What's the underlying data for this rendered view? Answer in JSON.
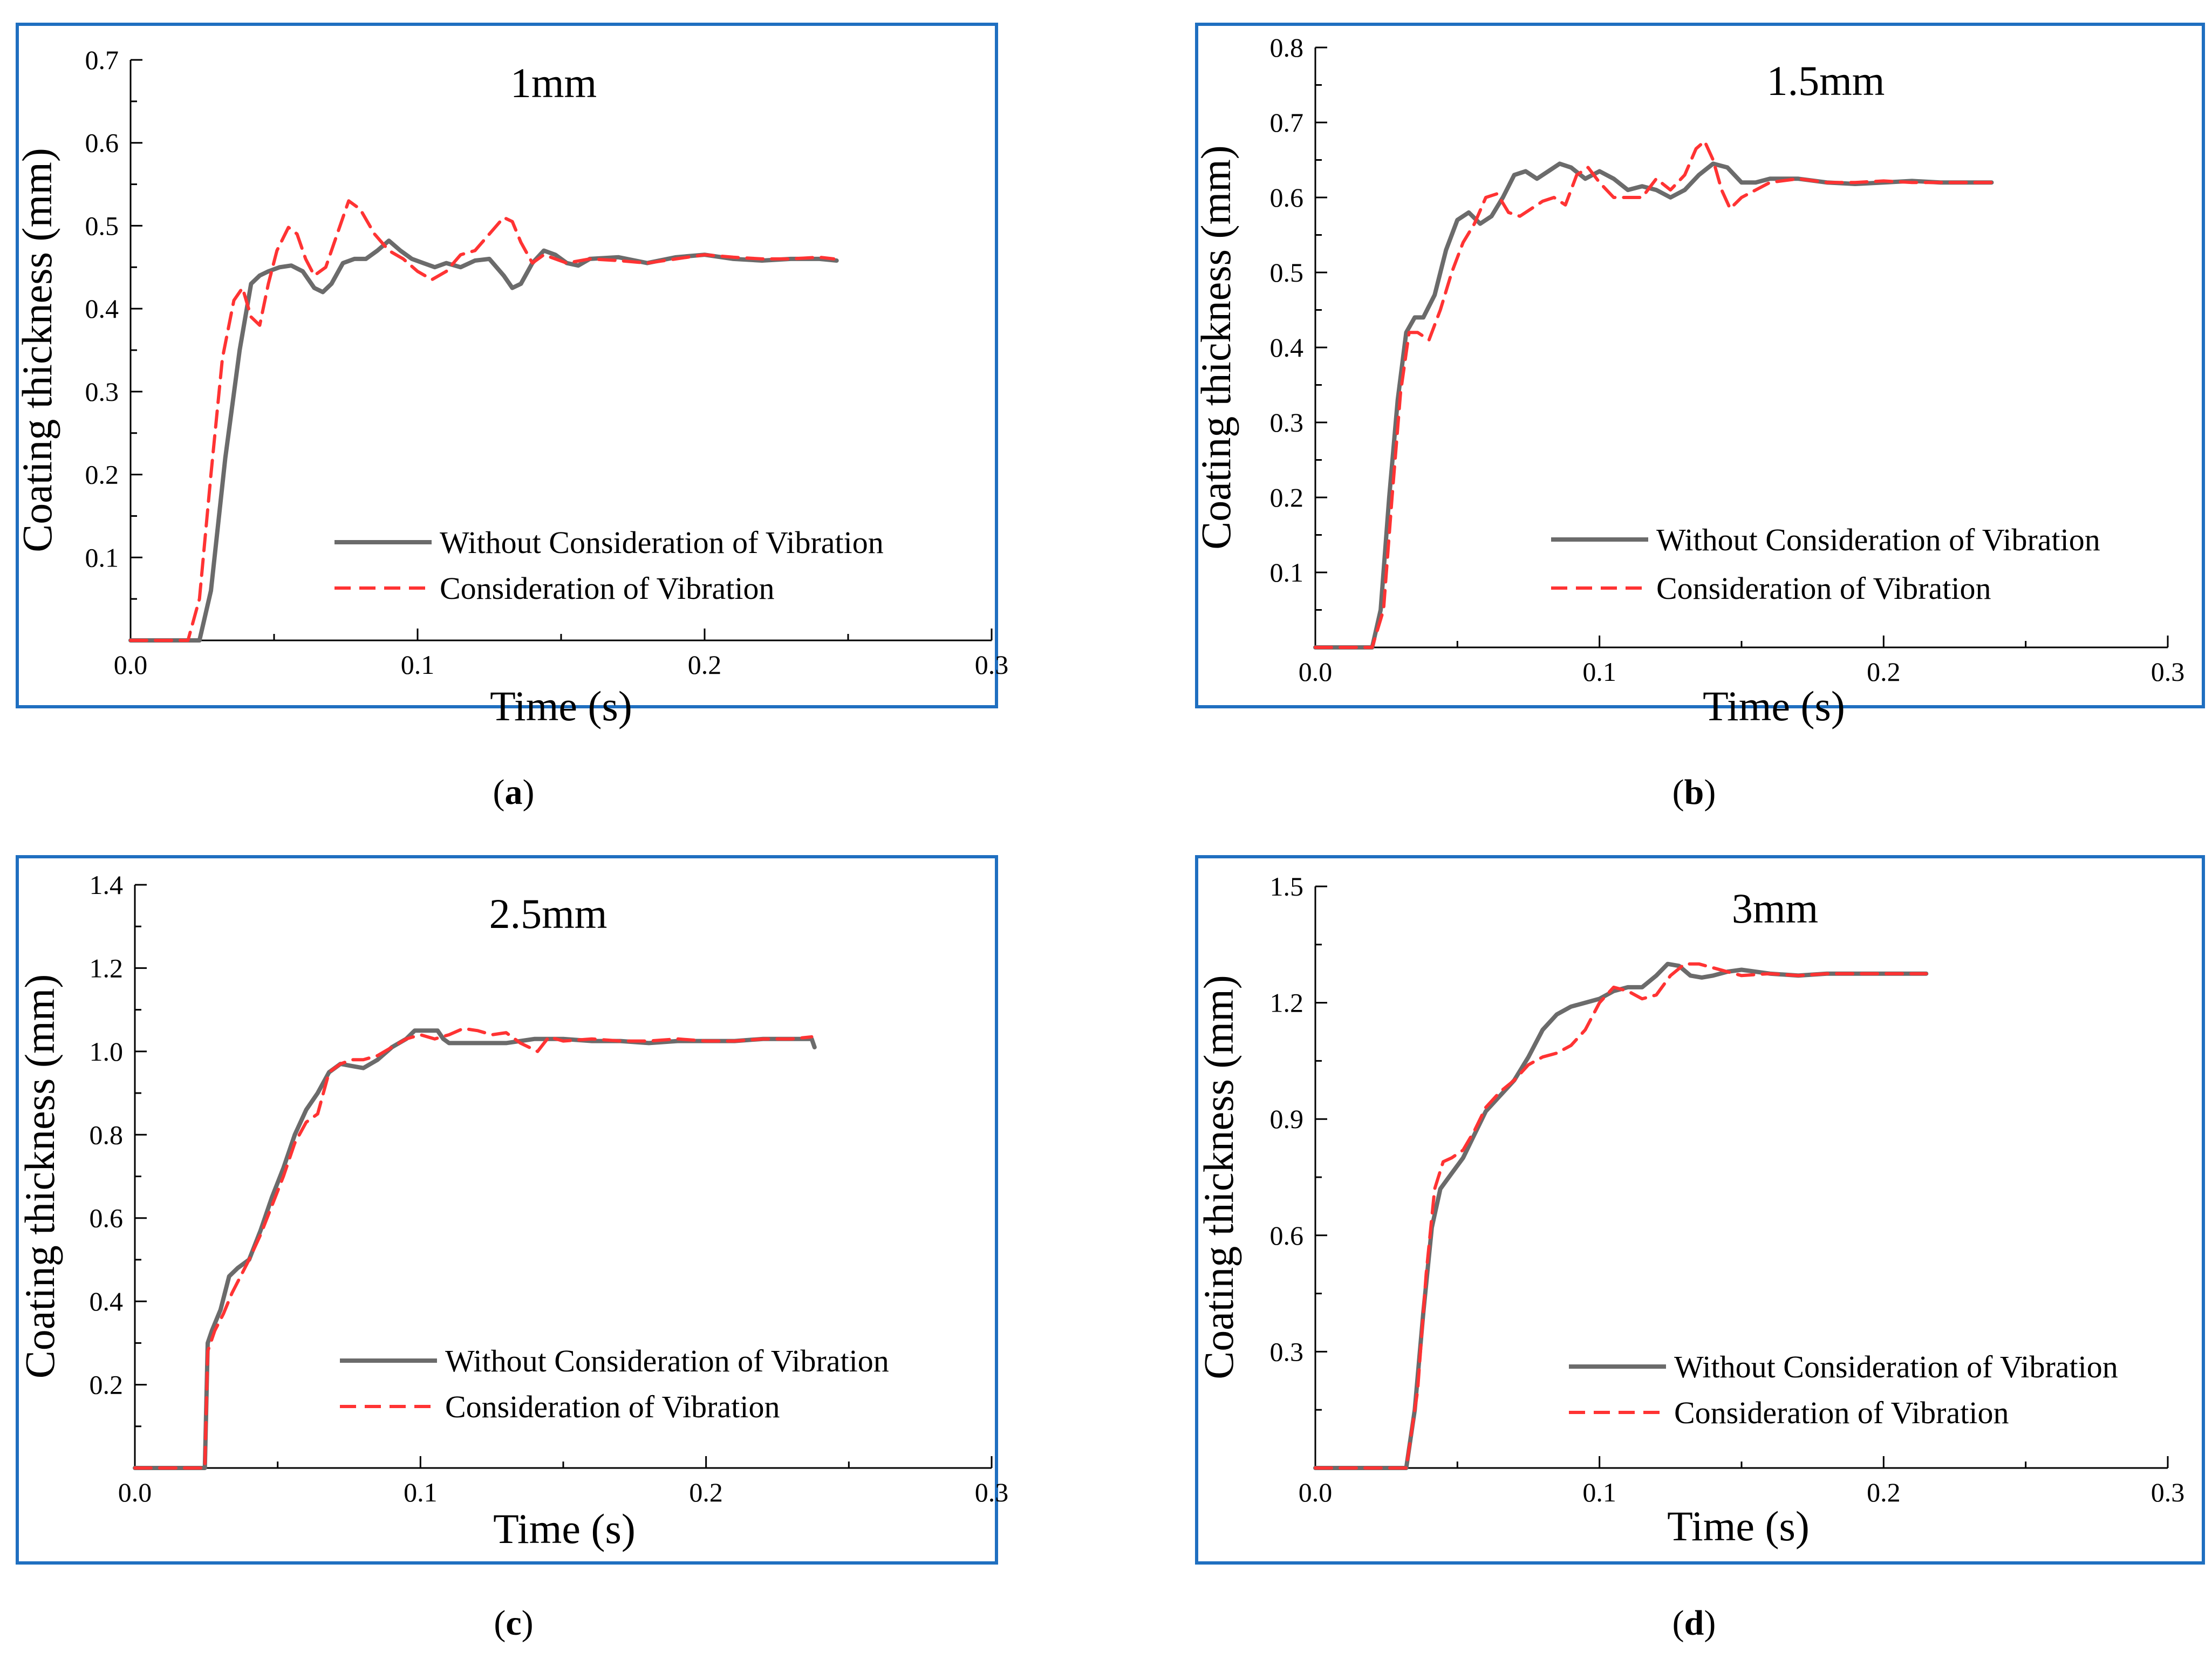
{
  "colors": {
    "frame": "#1f6fc0",
    "axis": "#000000",
    "series_without": "#6b6b6b",
    "series_with": "#ff3333"
  },
  "chart_data": [
    {
      "type": "line",
      "panel": "a",
      "panel_label": "a",
      "title": "1mm",
      "xlabel": "Time (s)",
      "ylabel": "Coating thickness (mm)",
      "xlim": [
        0,
        0.3
      ],
      "ylim": [
        0,
        0.7
      ],
      "xticks": [
        0.0,
        0.1,
        0.2,
        0.3
      ],
      "xtick_labels": [
        "0.0",
        "0.1",
        "0.2",
        "0.3"
      ],
      "yticks": [
        0.1,
        0.2,
        0.3,
        0.4,
        0.5,
        0.6,
        0.7
      ],
      "ytick_labels": [
        "0.1",
        "0.2",
        "0.3",
        "0.4",
        "0.5",
        "0.6",
        "0.7"
      ],
      "legend": {
        "placement": "bottom-right"
      },
      "series": [
        {
          "name": "Without Consideration of Vibration",
          "style": "solid",
          "x": [
            0,
            0.024,
            0.028,
            0.033,
            0.038,
            0.042,
            0.045,
            0.048,
            0.052,
            0.056,
            0.06,
            0.064,
            0.067,
            0.07,
            0.074,
            0.078,
            0.082,
            0.086,
            0.09,
            0.094,
            0.098,
            0.102,
            0.106,
            0.11,
            0.115,
            0.12,
            0.125,
            0.13,
            0.133,
            0.136,
            0.14,
            0.144,
            0.148,
            0.152,
            0.156,
            0.16,
            0.17,
            0.18,
            0.19,
            0.2,
            0.21,
            0.22,
            0.23,
            0.24,
            0.246
          ],
          "y": [
            0,
            0,
            0.06,
            0.22,
            0.35,
            0.43,
            0.44,
            0.445,
            0.45,
            0.452,
            0.445,
            0.425,
            0.42,
            0.43,
            0.455,
            0.46,
            0.46,
            0.47,
            0.482,
            0.47,
            0.46,
            0.455,
            0.45,
            0.455,
            0.45,
            0.458,
            0.46,
            0.44,
            0.425,
            0.43,
            0.455,
            0.47,
            0.465,
            0.455,
            0.452,
            0.46,
            0.462,
            0.455,
            0.462,
            0.465,
            0.46,
            0.458,
            0.46,
            0.46,
            0.458
          ]
        },
        {
          "name": "Consideration of Vibration",
          "style": "dashed",
          "x": [
            0,
            0.02,
            0.024,
            0.028,
            0.032,
            0.036,
            0.039,
            0.042,
            0.045,
            0.048,
            0.051,
            0.055,
            0.058,
            0.061,
            0.064,
            0.068,
            0.072,
            0.076,
            0.08,
            0.085,
            0.09,
            0.095,
            0.1,
            0.105,
            0.11,
            0.115,
            0.12,
            0.125,
            0.13,
            0.133,
            0.136,
            0.14,
            0.144,
            0.148,
            0.152,
            0.16,
            0.17,
            0.18,
            0.19,
            0.2,
            0.21,
            0.22,
            0.23,
            0.24,
            0.245
          ],
          "y": [
            0,
            0,
            0.05,
            0.2,
            0.34,
            0.41,
            0.425,
            0.39,
            0.38,
            0.43,
            0.47,
            0.498,
            0.49,
            0.46,
            0.44,
            0.45,
            0.49,
            0.53,
            0.52,
            0.49,
            0.47,
            0.46,
            0.445,
            0.435,
            0.445,
            0.465,
            0.47,
            0.49,
            0.51,
            0.505,
            0.48,
            0.455,
            0.465,
            0.46,
            0.455,
            0.46,
            0.458,
            0.455,
            0.46,
            0.465,
            0.462,
            0.46,
            0.46,
            0.462,
            0.46
          ]
        }
      ]
    },
    {
      "type": "line",
      "panel": "b",
      "panel_label": "b",
      "title": "1.5mm",
      "xlabel": "Time (s)",
      "ylabel": "Coating thickness (mm)",
      "xlim": [
        0,
        0.3
      ],
      "ylim": [
        0,
        0.8
      ],
      "xticks": [
        0.0,
        0.1,
        0.2,
        0.3
      ],
      "xtick_labels": [
        "0.0",
        "0.1",
        "0.2",
        "0.3"
      ],
      "yticks": [
        0.1,
        0.2,
        0.3,
        0.4,
        0.5,
        0.6,
        0.7,
        0.8
      ],
      "ytick_labels": [
        "0.1",
        "0.2",
        "0.3",
        "0.4",
        "0.5",
        "0.6",
        "0.7",
        "0.8"
      ],
      "legend": {
        "placement": "bottom-right"
      },
      "series": [
        {
          "name": "Without Consideration of Vibration",
          "style": "solid",
          "x": [
            0,
            0.02,
            0.023,
            0.026,
            0.029,
            0.032,
            0.035,
            0.038,
            0.042,
            0.046,
            0.05,
            0.054,
            0.058,
            0.062,
            0.066,
            0.07,
            0.074,
            0.078,
            0.082,
            0.086,
            0.09,
            0.095,
            0.1,
            0.105,
            0.11,
            0.115,
            0.12,
            0.125,
            0.13,
            0.135,
            0.14,
            0.145,
            0.15,
            0.155,
            0.16,
            0.17,
            0.18,
            0.19,
            0.2,
            0.21,
            0.22,
            0.23,
            0.238
          ],
          "y": [
            0,
            0,
            0.05,
            0.2,
            0.33,
            0.42,
            0.44,
            0.44,
            0.47,
            0.53,
            0.57,
            0.58,
            0.565,
            0.575,
            0.6,
            0.63,
            0.635,
            0.625,
            0.635,
            0.645,
            0.64,
            0.625,
            0.635,
            0.625,
            0.61,
            0.615,
            0.61,
            0.6,
            0.61,
            0.63,
            0.645,
            0.64,
            0.62,
            0.62,
            0.625,
            0.625,
            0.62,
            0.618,
            0.62,
            0.622,
            0.62,
            0.62,
            0.62
          ]
        },
        {
          "name": "Consideration of Vibration",
          "style": "dashed",
          "x": [
            0,
            0.02,
            0.024,
            0.027,
            0.03,
            0.033,
            0.036,
            0.04,
            0.044,
            0.048,
            0.052,
            0.056,
            0.06,
            0.064,
            0.068,
            0.072,
            0.076,
            0.08,
            0.084,
            0.088,
            0.092,
            0.096,
            0.1,
            0.105,
            0.11,
            0.115,
            0.12,
            0.125,
            0.13,
            0.134,
            0.137,
            0.14,
            0.143,
            0.146,
            0.15,
            0.155,
            0.16,
            0.17,
            0.18,
            0.19,
            0.2,
            0.21,
            0.22,
            0.23,
            0.238
          ],
          "y": [
            0,
            0,
            0.05,
            0.2,
            0.34,
            0.42,
            0.42,
            0.41,
            0.45,
            0.5,
            0.54,
            0.565,
            0.6,
            0.605,
            0.58,
            0.575,
            0.585,
            0.595,
            0.6,
            0.59,
            0.63,
            0.64,
            0.62,
            0.6,
            0.6,
            0.6,
            0.625,
            0.61,
            0.63,
            0.665,
            0.675,
            0.65,
            0.61,
            0.585,
            0.6,
            0.61,
            0.62,
            0.625,
            0.62,
            0.62,
            0.622,
            0.62,
            0.62,
            0.62,
            0.62
          ]
        }
      ]
    },
    {
      "type": "line",
      "panel": "c",
      "panel_label": "c",
      "title": "2.5mm",
      "xlabel": "Time (s)",
      "ylabel": "Coating thickness (mm)",
      "xlim": [
        0,
        0.3
      ],
      "ylim": [
        0,
        1.4
      ],
      "xticks": [
        0.0,
        0.1,
        0.2,
        0.3
      ],
      "xtick_labels": [
        "0.0",
        "0.1",
        "0.2",
        "0.3"
      ],
      "yticks": [
        0.2,
        0.4,
        0.6,
        0.8,
        1.0,
        1.2,
        1.4
      ],
      "ytick_labels": [
        "0.2",
        "0.4",
        "0.6",
        "0.8",
        "1.0",
        "1.2",
        "1.4"
      ],
      "legend": {
        "placement": "bottom-right"
      },
      "series": [
        {
          "name": "Without Consideration of Vibration",
          "style": "solid",
          "x": [
            0,
            0.0245,
            0.0255,
            0.027,
            0.03,
            0.033,
            0.036,
            0.04,
            0.044,
            0.048,
            0.052,
            0.056,
            0.06,
            0.064,
            0.068,
            0.072,
            0.076,
            0.08,
            0.085,
            0.09,
            0.095,
            0.098,
            0.102,
            0.106,
            0.108,
            0.11,
            0.115,
            0.12,
            0.13,
            0.14,
            0.15,
            0.16,
            0.17,
            0.18,
            0.19,
            0.2,
            0.21,
            0.22,
            0.23,
            0.237,
            0.238
          ],
          "y": [
            0,
            0,
            0.3,
            0.33,
            0.38,
            0.46,
            0.48,
            0.5,
            0.57,
            0.65,
            0.72,
            0.8,
            0.86,
            0.9,
            0.95,
            0.97,
            0.965,
            0.96,
            0.98,
            1.01,
            1.03,
            1.05,
            1.05,
            1.05,
            1.03,
            1.02,
            1.02,
            1.02,
            1.02,
            1.03,
            1.03,
            1.025,
            1.025,
            1.02,
            1.025,
            1.025,
            1.025,
            1.03,
            1.03,
            1.03,
            1.01
          ]
        },
        {
          "name": "Consideration of Vibration",
          "style": "dashed",
          "x": [
            0,
            0.0245,
            0.0255,
            0.028,
            0.031,
            0.034,
            0.037,
            0.04,
            0.044,
            0.048,
            0.052,
            0.056,
            0.06,
            0.064,
            0.068,
            0.072,
            0.076,
            0.08,
            0.085,
            0.09,
            0.095,
            0.1,
            0.105,
            0.11,
            0.115,
            0.12,
            0.125,
            0.13,
            0.135,
            0.138,
            0.141,
            0.145,
            0.15,
            0.16,
            0.17,
            0.18,
            0.19,
            0.2,
            0.21,
            0.22,
            0.23,
            0.237
          ],
          "y": [
            0,
            0,
            0.28,
            0.33,
            0.37,
            0.42,
            0.46,
            0.5,
            0.56,
            0.63,
            0.7,
            0.78,
            0.83,
            0.85,
            0.95,
            0.97,
            0.98,
            0.98,
            0.99,
            1.01,
            1.03,
            1.04,
            1.03,
            1.04,
            1.055,
            1.05,
            1.04,
            1.045,
            1.02,
            1.01,
            1.0,
            1.035,
            1.025,
            1.03,
            1.025,
            1.025,
            1.03,
            1.025,
            1.025,
            1.03,
            1.03,
            1.035
          ]
        }
      ]
    },
    {
      "type": "line",
      "panel": "d",
      "panel_label": "d",
      "title": "3mm",
      "xlabel": "Time (s)",
      "ylabel": "Coating thickness (mm)",
      "xlim": [
        0,
        0.3
      ],
      "ylim": [
        0,
        1.5
      ],
      "xticks": [
        0.0,
        0.1,
        0.2,
        0.3
      ],
      "xtick_labels": [
        "0.0",
        "0.1",
        "0.2",
        "0.3"
      ],
      "yticks": [
        0.3,
        0.6,
        0.9,
        1.2,
        1.5
      ],
      "ytick_labels": [
        "0.3",
        "0.6",
        "0.9",
        "1.2",
        "1.5"
      ],
      "legend": {
        "placement": "bottom-right"
      },
      "series": [
        {
          "name": "Without Consideration of Vibration",
          "style": "solid",
          "x": [
            0,
            0.032,
            0.035,
            0.038,
            0.041,
            0.044,
            0.048,
            0.052,
            0.056,
            0.06,
            0.065,
            0.07,
            0.075,
            0.08,
            0.085,
            0.09,
            0.095,
            0.1,
            0.105,
            0.11,
            0.115,
            0.12,
            0.124,
            0.128,
            0.132,
            0.136,
            0.14,
            0.145,
            0.15,
            0.155,
            0.16,
            0.17,
            0.18,
            0.19,
            0.2,
            0.21,
            0.215
          ],
          "y": [
            0,
            0,
            0.15,
            0.4,
            0.62,
            0.72,
            0.76,
            0.8,
            0.86,
            0.92,
            0.96,
            1.0,
            1.06,
            1.13,
            1.17,
            1.19,
            1.2,
            1.21,
            1.23,
            1.24,
            1.24,
            1.27,
            1.3,
            1.295,
            1.27,
            1.265,
            1.27,
            1.28,
            1.285,
            1.28,
            1.275,
            1.27,
            1.275,
            1.275,
            1.275,
            1.275,
            1.275
          ]
        },
        {
          "name": "Consideration of Vibration",
          "style": "dashed",
          "x": [
            0,
            0.032,
            0.036,
            0.039,
            0.042,
            0.045,
            0.048,
            0.052,
            0.056,
            0.06,
            0.065,
            0.07,
            0.075,
            0.08,
            0.085,
            0.09,
            0.095,
            0.1,
            0.105,
            0.11,
            0.115,
            0.12,
            0.125,
            0.13,
            0.135,
            0.14,
            0.145,
            0.15,
            0.16,
            0.17,
            0.18,
            0.19,
            0.2,
            0.21,
            0.215
          ],
          "y": [
            0,
            0,
            0.2,
            0.5,
            0.72,
            0.79,
            0.8,
            0.82,
            0.87,
            0.93,
            0.97,
            1.0,
            1.04,
            1.06,
            1.07,
            1.09,
            1.13,
            1.2,
            1.24,
            1.23,
            1.21,
            1.22,
            1.27,
            1.3,
            1.3,
            1.29,
            1.28,
            1.27,
            1.275,
            1.27,
            1.275,
            1.275,
            1.275,
            1.275,
            1.275
          ]
        }
      ]
    }
  ]
}
